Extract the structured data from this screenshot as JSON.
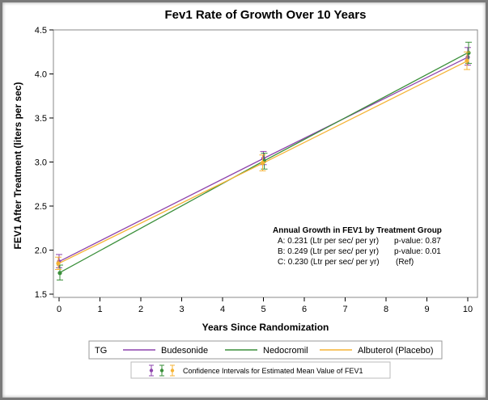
{
  "chart_data": {
    "type": "line",
    "title": "Fev1 Rate of Growth Over 10 Years",
    "xlabel": "Years Since Randomization",
    "ylabel": "FEV1 After Treatment (liters per sec)",
    "xlim": [
      0,
      10
    ],
    "ylim": [
      1.5,
      4.5
    ],
    "x_ticks": [
      0,
      1,
      2,
      3,
      4,
      5,
      6,
      7,
      8,
      9,
      10
    ],
    "y_ticks": [
      1.5,
      2.0,
      2.5,
      3.0,
      3.5,
      4.0,
      4.5
    ],
    "grid": false,
    "x": [
      0,
      5,
      10
    ],
    "series": [
      {
        "name": "Budesonide",
        "color": "#8e44ad",
        "values": [
          1.87,
          3.04,
          4.19
        ],
        "ci_low": [
          1.8,
          2.97,
          4.1
        ],
        "ci_high": [
          1.95,
          3.12,
          4.3
        ]
      },
      {
        "name": "Nedocromil",
        "color": "#3a8f3a",
        "values": [
          1.74,
          3.01,
          4.24
        ],
        "ci_low": [
          1.66,
          2.92,
          4.12
        ],
        "ci_high": [
          1.83,
          3.1,
          4.36
        ]
      },
      {
        "name": "Albuterol (Placebo)",
        "color": "#f5b335",
        "values": [
          1.85,
          2.99,
          4.15
        ],
        "ci_low": [
          1.78,
          2.9,
          4.05
        ],
        "ci_high": [
          1.92,
          3.08,
          4.25
        ]
      }
    ],
    "annotation": {
      "title": "Annual Growth in FEV1 by Treatment Group",
      "lines": [
        {
          "label": "A: 0.231 (Ltr per sec/ per yr)",
          "p": "p-value: 0.87"
        },
        {
          "label": "B: 0.249 (Ltr per sec/ per yr)",
          "p": "p-value: 0.01"
        },
        {
          "label": "C: 0.230 (Ltr per sec/ per yr)",
          "p": "(Ref)"
        }
      ]
    },
    "legend": {
      "title": "TG",
      "placement": "bottom",
      "ci_text": "Confidence Intervals for Estimated Mean Value of FEV1"
    }
  }
}
